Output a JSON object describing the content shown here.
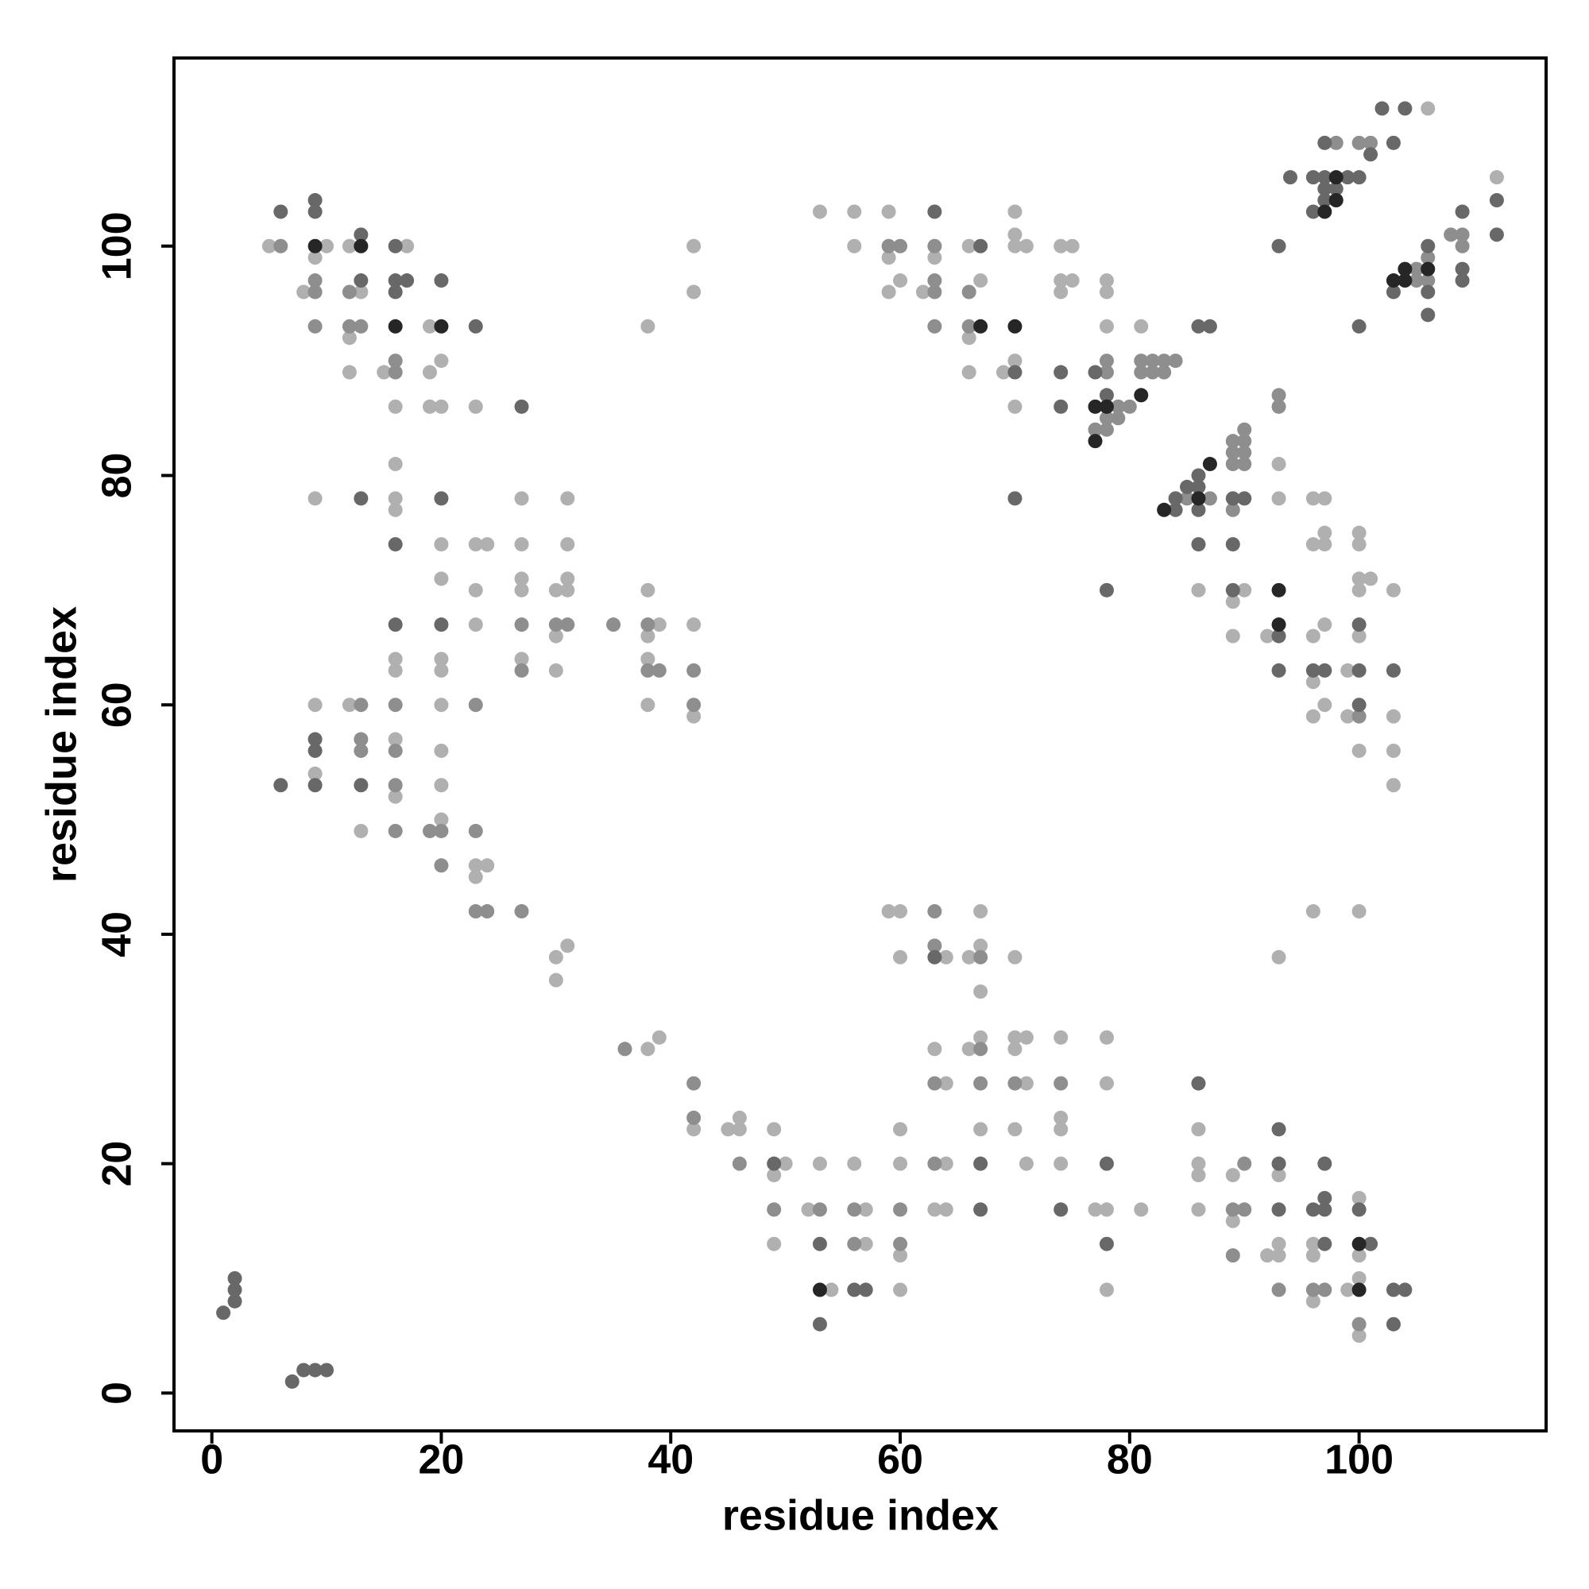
{
  "chart_data": {
    "type": "scatter",
    "xlabel": "residue index",
    "ylabel": "residue index",
    "xlim": [
      -3.3,
      116.3
    ],
    "ylim": [
      -3.3,
      116.4
    ],
    "xticks": [
      0,
      20,
      40,
      60,
      80,
      100
    ],
    "yticks": [
      0,
      20,
      40,
      60,
      80,
      100
    ],
    "grid": false,
    "series": [
      {
        "color": "#b0b0b0",
        "x": [
          5,
          10,
          9,
          8,
          12,
          13,
          12,
          12,
          17,
          15,
          16,
          19,
          19,
          20,
          19,
          20,
          23,
          38,
          42,
          42,
          9,
          16,
          16,
          16,
          20,
          20,
          23,
          24,
          23,
          27,
          27,
          27,
          27,
          31,
          31,
          31,
          30,
          31,
          23,
          30,
          38,
          39,
          38,
          38,
          42,
          16,
          16,
          20,
          20,
          27,
          30,
          38,
          42,
          9,
          9,
          12,
          13,
          16,
          16,
          20,
          20,
          20,
          20,
          23,
          24,
          23,
          31,
          30,
          30,
          38,
          39,
          42,
          45,
          46,
          46,
          49,
          50,
          49,
          49,
          52,
          53,
          54,
          56,
          57,
          57,
          60,
          60,
          60,
          60,
          59,
          60,
          60,
          64,
          66,
          67,
          67,
          67,
          70,
          63,
          66,
          67,
          70,
          71,
          70,
          64,
          71,
          74,
          74,
          74,
          78,
          78,
          64,
          67,
          70,
          71,
          74,
          63,
          64,
          77,
          78,
          81,
          78,
          86,
          86,
          86,
          86,
          89,
          89,
          92,
          93,
          93,
          93,
          96,
          96,
          96,
          100,
          100,
          100,
          99,
          100,
          93,
          96,
          100,
          90,
          89,
          89,
          92,
          96,
          97,
          97,
          96,
          97,
          93,
          93,
          96,
          97,
          96,
          96,
          97,
          99,
          99,
          100,
          100,
          100,
          100,
          101,
          100,
          100,
          103,
          103,
          103,
          103,
          86,
          81,
          78,
          78,
          78,
          74,
          75,
          74,
          74,
          75,
          70,
          70,
          71,
          70,
          70,
          69,
          70,
          67,
          66,
          66,
          66,
          63,
          62,
          59,
          59,
          60,
          59,
          56,
          56,
          53,
          106,
          112
        ],
        "values": [
          100,
          100,
          99,
          96,
          100,
          96,
          92,
          89,
          100,
          89,
          86,
          93,
          89,
          90,
          86,
          86,
          86,
          93,
          100,
          96,
          78,
          81,
          78,
          77,
          74,
          71,
          74,
          74,
          70,
          78,
          74,
          71,
          70,
          78,
          74,
          71,
          70,
          70,
          67,
          66,
          70,
          67,
          66,
          64,
          67,
          64,
          63,
          64,
          63,
          64,
          63,
          60,
          59,
          60,
          54,
          60,
          49,
          57,
          52,
          60,
          56,
          53,
          50,
          46,
          46,
          45,
          39,
          38,
          36,
          30,
          31,
          23,
          23,
          24,
          23,
          23,
          20,
          19,
          13,
          16,
          20,
          9,
          20,
          16,
          13,
          23,
          20,
          12,
          9,
          42,
          42,
          38,
          38,
          38,
          42,
          39,
          35,
          38,
          30,
          30,
          31,
          31,
          31,
          30,
          27,
          27,
          31,
          24,
          23,
          31,
          27,
          20,
          23,
          23,
          20,
          20,
          16,
          16,
          16,
          16,
          16,
          9,
          23,
          20,
          19,
          16,
          19,
          15,
          12,
          12,
          13,
          19,
          13,
          12,
          8,
          17,
          12,
          10,
          9,
          5,
          38,
          42,
          42,
          70,
          69,
          66,
          66,
          74,
          74,
          75,
          78,
          78,
          81,
          78,
          66,
          67,
          62,
          59,
          60,
          63,
          59,
          56,
          75,
          74,
          71,
          71,
          70,
          66,
          70,
          59,
          56,
          53,
          70,
          93,
          93,
          96,
          97,
          97,
          97,
          96,
          100,
          100,
          101,
          100,
          100,
          103,
          90,
          89,
          86,
          97,
          100,
          92,
          89,
          99,
          96,
          103,
          99,
          97,
          96,
          103,
          100,
          103,
          112,
          106
        ]
      },
      {
        "color": "#8e8e8e",
        "x": [
          6,
          9,
          9,
          9,
          12,
          12,
          13,
          16,
          16,
          27,
          30,
          31,
          35,
          38,
          38,
          39,
          42,
          27,
          42,
          13,
          13,
          13,
          16,
          16,
          16,
          16,
          19,
          20,
          20,
          23,
          23,
          23,
          24,
          27,
          36,
          42,
          42,
          46,
          49,
          53,
          56,
          56,
          60,
          60,
          63,
          63,
          67,
          67,
          63,
          67,
          70,
          74,
          63,
          90,
          89,
          90,
          89,
          93,
          96,
          97,
          100,
          100,
          85,
          87,
          89,
          89,
          89,
          90,
          90,
          90,
          89,
          90,
          93,
          93,
          77,
          78,
          78,
          79,
          79,
          80,
          78,
          78,
          81,
          81,
          82,
          82,
          83,
          83,
          84,
          66,
          66,
          63,
          63,
          63,
          63,
          59,
          60,
          98,
          100,
          101,
          105,
          105,
          106,
          106,
          108,
          109,
          109
        ],
        "values": [
          100,
          97,
          96,
          93,
          96,
          93,
          93,
          89,
          90,
          67,
          67,
          67,
          67,
          67,
          63,
          63,
          63,
          63,
          60,
          60,
          57,
          56,
          60,
          56,
          53,
          49,
          49,
          49,
          46,
          60,
          49,
          42,
          42,
          42,
          30,
          27,
          24,
          20,
          16,
          16,
          16,
          13,
          16,
          13,
          42,
          39,
          38,
          30,
          27,
          27,
          27,
          27,
          20,
          20,
          16,
          16,
          12,
          9,
          9,
          9,
          6,
          59,
          78,
          78,
          77,
          82,
          83,
          83,
          82,
          81,
          81,
          84,
          87,
          86,
          84,
          84,
          85,
          86,
          85,
          86,
          89,
          90,
          89,
          90,
          90,
          89,
          89,
          90,
          90,
          96,
          93,
          100,
          97,
          96,
          93,
          100,
          100,
          109,
          109,
          109,
          98,
          97,
          97,
          99,
          101,
          101,
          100
        ]
      },
      {
        "color": "#686868",
        "x": [
          1,
          2,
          2,
          2,
          7,
          8,
          9,
          10,
          6,
          9,
          9,
          13,
          13,
          16,
          16,
          17,
          16,
          20,
          23,
          27,
          13,
          16,
          20,
          16,
          20,
          6,
          9,
          9,
          9,
          13,
          49,
          53,
          53,
          56,
          57,
          63,
          67,
          78,
          67,
          74,
          78,
          86,
          93,
          93,
          93,
          96,
          97,
          97,
          97,
          97,
          100,
          101,
          103,
          104,
          103,
          89,
          93,
          93,
          96,
          97,
          100,
          100,
          100,
          103,
          84,
          84,
          85,
          86,
          86,
          86,
          86,
          89,
          89,
          90,
          78,
          70,
          78,
          77,
          86,
          87,
          74,
          74,
          70,
          67,
          63,
          93,
          94,
          96,
          97,
          97,
          97,
          98,
          97,
          96,
          99,
          100,
          101,
          102,
          103,
          104,
          100,
          106,
          103,
          106,
          106,
          109,
          109,
          109,
          112,
          112
        ],
        "values": [
          7,
          10,
          9,
          8,
          1,
          2,
          2,
          2,
          103,
          104,
          103,
          101,
          97,
          100,
          97,
          97,
          96,
          97,
          93,
          86,
          78,
          74,
          78,
          67,
          67,
          53,
          57,
          56,
          53,
          53,
          20,
          13,
          6,
          9,
          9,
          38,
          20,
          20,
          16,
          16,
          13,
          27,
          23,
          20,
          16,
          16,
          16,
          17,
          13,
          20,
          16,
          13,
          9,
          9,
          6,
          70,
          66,
          63,
          63,
          63,
          63,
          60,
          67,
          63,
          77,
          78,
          79,
          80,
          79,
          77,
          74,
          74,
          78,
          78,
          70,
          78,
          87,
          89,
          93,
          93,
          89,
          86,
          89,
          100,
          103,
          100,
          106,
          106,
          106,
          109,
          105,
          105,
          104,
          103,
          106,
          106,
          108,
          112,
          109,
          112,
          93,
          100,
          96,
          96,
          94,
          103,
          98,
          97,
          104,
          101
        ]
      },
      {
        "color": "#262626",
        "x": [
          9,
          13,
          16,
          20,
          53,
          100,
          100,
          93,
          93,
          83,
          86,
          87,
          77,
          77,
          78,
          81,
          70,
          67,
          98,
          97,
          98,
          103,
          104,
          104,
          106
        ],
        "values": [
          100,
          100,
          93,
          93,
          9,
          13,
          9,
          67,
          70,
          77,
          78,
          81,
          83,
          86,
          86,
          87,
          93,
          93,
          104,
          103,
          106,
          97,
          97,
          98,
          98
        ]
      }
    ]
  }
}
